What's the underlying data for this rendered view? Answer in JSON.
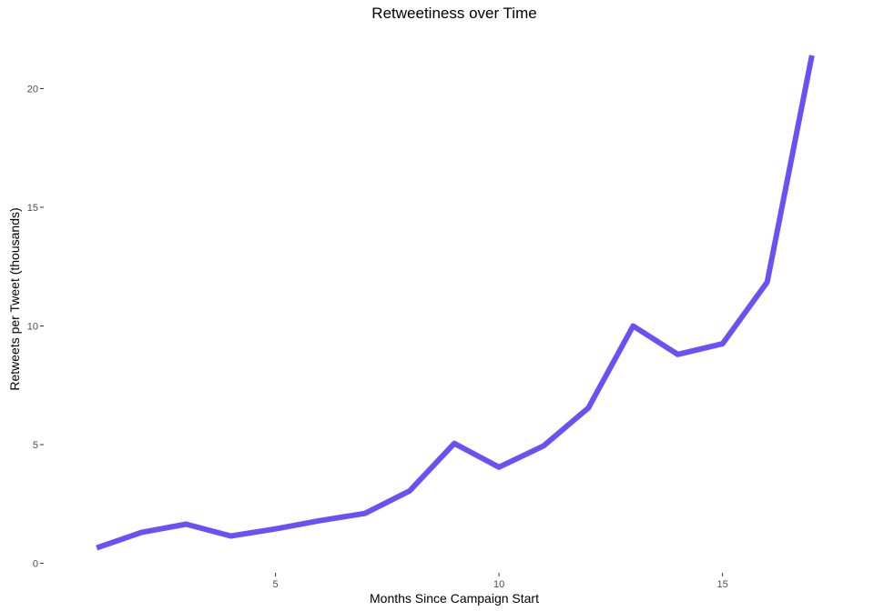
{
  "chart_data": {
    "type": "line",
    "title": "Retweetiness over Time",
    "xlabel": "Months Since Campaign Start",
    "ylabel": "Retweets per Tweet (thousands)",
    "x_ticks": [
      5,
      10,
      15
    ],
    "y_ticks": [
      0,
      5,
      10,
      15,
      20
    ],
    "xlim": [
      0.1,
      17.9
    ],
    "ylim": [
      -0.4,
      22.2
    ],
    "grid": false,
    "legend": "none",
    "series": [
      {
        "color": "#6b50f5",
        "x": [
          1,
          2,
          3,
          4,
          5,
          6,
          7,
          8,
          9,
          10,
          11,
          12,
          13,
          14,
          15,
          16,
          17
        ],
        "y": [
          0.65,
          1.3,
          1.65,
          1.15,
          1.45,
          1.8,
          2.1,
          3.05,
          5.05,
          4.05,
          4.95,
          6.55,
          10.0,
          8.8,
          9.25,
          11.85,
          21.4
        ]
      }
    ]
  }
}
